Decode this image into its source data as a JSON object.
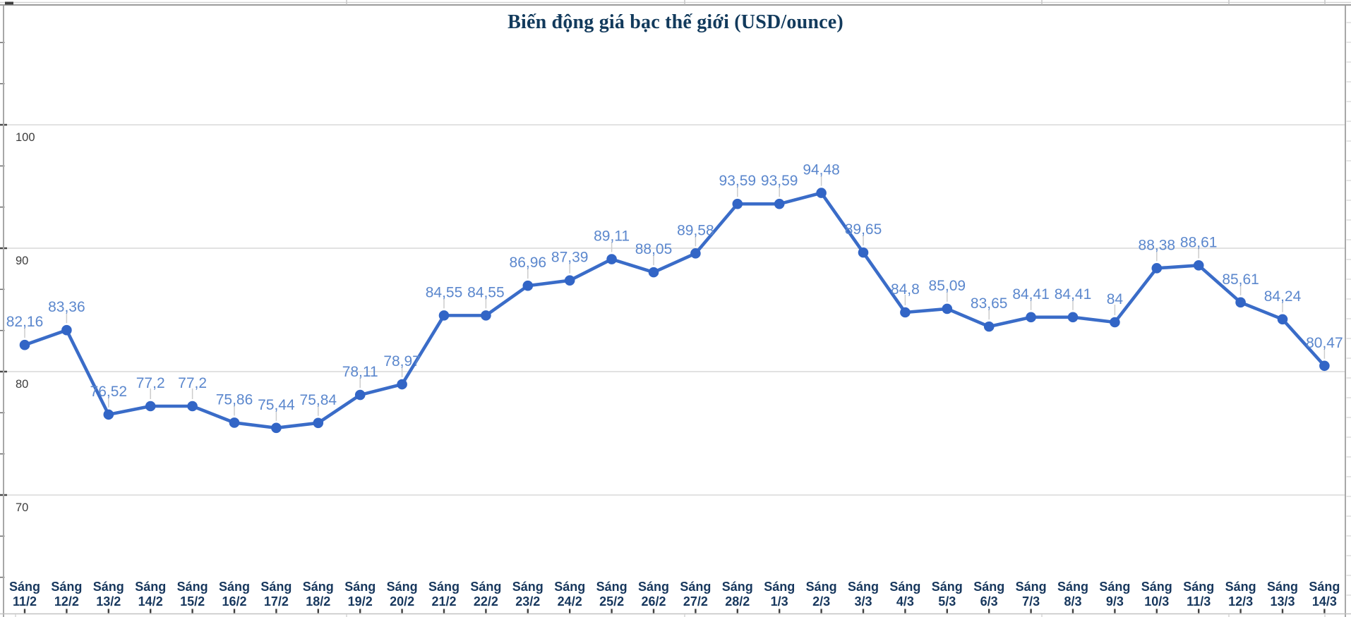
{
  "chart_data": {
    "type": "line",
    "title": "Biến động giá bạc thế giới (USD/ounce)",
    "category_prefix": "Sáng",
    "categories": [
      "11/2",
      "12/2",
      "13/2",
      "14/2",
      "15/2",
      "16/2",
      "17/2",
      "18/2",
      "19/2",
      "20/2",
      "21/2",
      "22/2",
      "23/2",
      "24/2",
      "25/2",
      "26/2",
      "27/2",
      "28/2",
      "1/3",
      "2/3",
      "3/3",
      "4/3",
      "5/3",
      "6/3",
      "7/3",
      "8/3",
      "9/3",
      "10/3",
      "11/3",
      "12/3",
      "13/3",
      "14/3"
    ],
    "values": [
      82.16,
      83.36,
      76.52,
      77.2,
      77.2,
      75.86,
      75.44,
      75.84,
      78.11,
      78.97,
      84.55,
      84.55,
      86.96,
      87.39,
      89.11,
      88.05,
      89.58,
      93.59,
      93.59,
      94.48,
      89.65,
      84.8,
      85.09,
      83.65,
      84.41,
      84.41,
      84,
      88.38,
      88.61,
      85.61,
      84.24,
      80.47
    ],
    "value_labels": [
      "82,16",
      "83,36",
      "76,52",
      "77,2",
      "77,2",
      "75,86",
      "75,44",
      "75,84",
      "78,11",
      "78,97",
      "84,55",
      "84,55",
      "86,96",
      "87,39",
      "89,11",
      "88,05",
      "89,58",
      "93,59",
      "93,59",
      "94,48",
      "89,65",
      "84,8",
      "85,09",
      "83,65",
      "84,41",
      "84,41",
      "84",
      "88,38",
      "88,61",
      "85,61",
      "84,24",
      "80,47"
    ],
    "yticks": [
      100,
      90,
      80,
      70
    ],
    "ylim": [
      63.3,
      106.7
    ],
    "grid": "horizontal-major",
    "legend": "none",
    "colors": {
      "series": "#3a6cc8",
      "point": "#3265c6",
      "data_label": "#5b87cd",
      "axis_tick_label": "#3d3d3d",
      "x_label": "#17375d",
      "title": "#123a5c",
      "gridline": "#d9d9d9",
      "axis_line": "#a8a8a8",
      "leader_line": "#cccccc"
    }
  }
}
